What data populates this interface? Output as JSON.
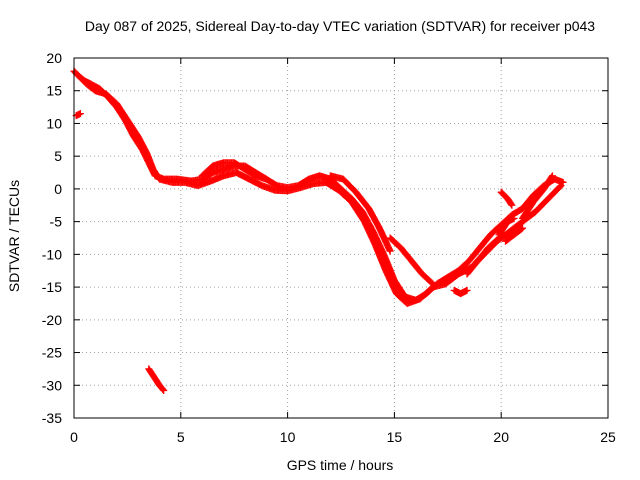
{
  "chart_data": {
    "type": "scatter",
    "title": "Day 087 of 2025, Sidereal Day-to-day VTEC variation (SDTVAR) for receiver p043",
    "xlabel": "GPS time / hours",
    "ylabel": "SDTVAR / TECUs",
    "xlim": [
      0,
      25
    ],
    "ylim": [
      -35,
      20
    ],
    "xticks": [
      0,
      5,
      10,
      15,
      20,
      25
    ],
    "yticks": [
      20,
      15,
      10,
      5,
      0,
      -5,
      -10,
      -15,
      -20,
      -25,
      -30,
      -35
    ],
    "grid": true,
    "marker": "+",
    "series": [
      {
        "name": "SDTVAR",
        "color": "#ff0000",
        "tracks": [
          [
            [
              0.0,
              18.0
            ],
            [
              0.2,
              17.3
            ],
            [
              0.5,
              16.5
            ],
            [
              0.8,
              16.0
            ],
            [
              1.2,
              15.3
            ],
            [
              1.6,
              14.0
            ],
            [
              2.0,
              12.5
            ],
            [
              2.4,
              10.5
            ],
            [
              2.8,
              8.0
            ],
            [
              3.2,
              6.0
            ],
            [
              3.5,
              4.0
            ],
            [
              3.8,
              2.0
            ],
            [
              4.2,
              1.5
            ],
            [
              4.8,
              1.5
            ],
            [
              5.5,
              1.2
            ],
            [
              6.0,
              1.5
            ],
            [
              6.5,
              2.5
            ],
            [
              7.0,
              3.0
            ],
            [
              7.5,
              3.5
            ],
            [
              8.0,
              3.5
            ],
            [
              8.5,
              2.5
            ],
            [
              9.0,
              1.5
            ],
            [
              9.5,
              0.5
            ],
            [
              10.0,
              0.2
            ],
            [
              10.5,
              0.5
            ],
            [
              11.0,
              1.5
            ],
            [
              11.5,
              2.0
            ],
            [
              12.0,
              1.5
            ],
            [
              12.5,
              0.0
            ],
            [
              13.0,
              -1.5
            ],
            [
              13.5,
              -3.5
            ],
            [
              14.0,
              -6.5
            ],
            [
              14.5,
              -10.0
            ],
            [
              15.0,
              -14.0
            ],
            [
              15.5,
              -16.5
            ],
            [
              16.0,
              -17.0
            ],
            [
              16.5,
              -16.0
            ],
            [
              17.0,
              -14.5
            ],
            [
              17.5,
              -13.5
            ],
            [
              18.0,
              -12.5
            ],
            [
              18.5,
              -11.0
            ],
            [
              19.0,
              -9.0
            ],
            [
              19.5,
              -7.0
            ],
            [
              20.0,
              -5.5
            ],
            [
              20.5,
              -4.0
            ],
            [
              21.0,
              -3.0
            ],
            [
              21.5,
              -1.0
            ],
            [
              22.0,
              0.5
            ],
            [
              22.5,
              1.5
            ],
            [
              22.9,
              1.0
            ]
          ],
          [
            [
              0.3,
              17.0
            ],
            [
              0.6,
              16.0
            ],
            [
              1.0,
              15.0
            ],
            [
              1.5,
              14.5
            ],
            [
              2.0,
              13.0
            ],
            [
              2.5,
              10.5
            ],
            [
              3.0,
              8.0
            ],
            [
              3.4,
              5.5
            ],
            [
              3.7,
              3.0
            ],
            [
              4.0,
              1.5
            ],
            [
              4.6,
              1.0
            ],
            [
              5.2,
              1.0
            ],
            [
              5.8,
              0.5
            ],
            [
              6.4,
              1.2
            ],
            [
              7.0,
              2.0
            ],
            [
              7.6,
              2.5
            ],
            [
              8.2,
              1.5
            ],
            [
              8.8,
              0.5
            ],
            [
              9.4,
              -0.2
            ],
            [
              10.0,
              -0.3
            ],
            [
              10.6,
              0.2
            ],
            [
              11.2,
              0.8
            ],
            [
              11.8,
              1.0
            ],
            [
              12.4,
              -0.2
            ],
            [
              13.0,
              -2.0
            ],
            [
              13.6,
              -5.0
            ],
            [
              14.1,
              -8.5
            ],
            [
              14.6,
              -12.5
            ],
            [
              15.1,
              -16.0
            ],
            [
              15.6,
              -17.5
            ],
            [
              16.2,
              -16.8
            ],
            [
              16.8,
              -15.0
            ],
            [
              17.4,
              -14.5
            ],
            [
              18.0,
              -13.0
            ],
            [
              18.6,
              -12.0
            ],
            [
              19.2,
              -10.0
            ],
            [
              19.8,
              -8.0
            ],
            [
              20.4,
              -6.5
            ],
            [
              21.0,
              -5.0
            ],
            [
              21.6,
              -3.5
            ],
            [
              22.2,
              -1.5
            ],
            [
              22.8,
              0.5
            ]
          ],
          [
            [
              6.0,
              2.0
            ],
            [
              6.5,
              3.5
            ],
            [
              7.0,
              4.0
            ],
            [
              7.5,
              4.0
            ],
            [
              8.0,
              3.0
            ],
            [
              8.5,
              2.0
            ],
            [
              9.0,
              1.5
            ]
          ],
          [
            [
              12.0,
              2.0
            ],
            [
              12.6,
              1.5
            ],
            [
              13.2,
              -0.5
            ],
            [
              13.8,
              -3.0
            ],
            [
              14.3,
              -6.0
            ],
            [
              14.8,
              -9.5
            ]
          ],
          [
            [
              14.8,
              -7.5
            ],
            [
              15.3,
              -9.0
            ],
            [
              15.8,
              -11.0
            ],
            [
              16.3,
              -13.0
            ],
            [
              16.8,
              -14.5
            ]
          ],
          [
            [
              17.8,
              -15.5
            ],
            [
              18.1,
              -16.0
            ],
            [
              18.4,
              -15.5
            ]
          ],
          [
            [
              18.4,
              -13.0
            ],
            [
              18.9,
              -11.0
            ],
            [
              19.4,
              -9.0
            ],
            [
              19.9,
              -7.5
            ]
          ],
          [
            [
              19.9,
              -7.0
            ],
            [
              20.3,
              -5.0
            ],
            [
              20.6,
              -4.5
            ]
          ],
          [
            [
              20.0,
              -0.5
            ],
            [
              20.3,
              -1.5
            ],
            [
              20.5,
              -2.5
            ]
          ],
          [
            [
              20.2,
              -8.0
            ],
            [
              20.6,
              -7.0
            ],
            [
              21.0,
              -6.0
            ]
          ],
          [
            [
              21.0,
              -4.5
            ],
            [
              21.5,
              -2.0
            ],
            [
              22.0,
              0.0
            ],
            [
              22.4,
              2.0
            ]
          ],
          [
            [
              0.1,
              11.2
            ],
            [
              0.3,
              11.5
            ]
          ],
          [
            [
              3.5,
              -27.5
            ],
            [
              3.8,
              -29.0
            ],
            [
              4.0,
              -30.0
            ],
            [
              4.2,
              -30.8
            ]
          ]
        ]
      }
    ]
  }
}
